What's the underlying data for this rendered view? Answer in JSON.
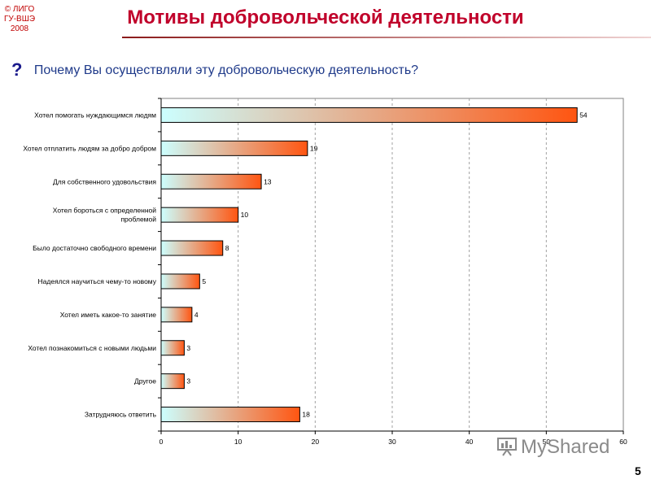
{
  "copyright": {
    "line1": "© ЛИГО",
    "line2": "ГУ-ВШЭ",
    "line3": "2008"
  },
  "title": "Мотивы добровольческой деятельности",
  "question": {
    "mark": "?",
    "text": "Почему Вы осуществляли эту добровольческую деятельность?"
  },
  "watermark": "MyShared",
  "page_number": "5",
  "colors": {
    "title": "#c0002a",
    "question": "#1f3a8a",
    "bar_start": "#ccffff",
    "bar_end": "#ff5511"
  },
  "chart_data": {
    "type": "bar",
    "orientation": "horizontal",
    "categories": [
      [
        "Хотел помогать нуждающимся людям"
      ],
      [
        "Хотел отплатить людям за добро добром"
      ],
      [
        "Для собственного удовольствия"
      ],
      [
        "Хотел бороться с определенной",
        "проблемой"
      ],
      [
        "Было достаточно свободного времени"
      ],
      [
        "Надеялся научиться чему-то новому"
      ],
      [
        "Хотел иметь какое-то занятие"
      ],
      [
        "Хотел познакомиться с новыми людьми"
      ],
      [
        "Другое"
      ],
      [
        "Затрудняюсь ответить"
      ]
    ],
    "values": [
      54,
      19,
      13,
      10,
      8,
      5,
      4,
      3,
      3,
      18
    ],
    "value_labels": [
      "54",
      "19",
      "13",
      "10",
      "8",
      "5",
      "4",
      "3",
      "3",
      "18"
    ],
    "xlim": [
      0,
      60
    ],
    "xticks": [
      "0",
      "10",
      "20",
      "30",
      "40",
      "50",
      "60"
    ],
    "grid": true
  }
}
